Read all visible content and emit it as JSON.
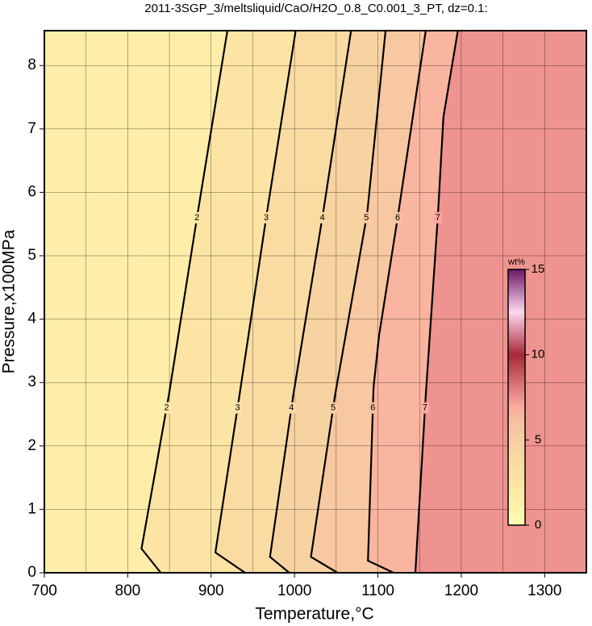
{
  "chart_data": {
    "type": "contour",
    "title": "2011-3SGP_3/meltsliquid/CaO/H2O_0.8_C0.001_3_PT, dz=0.1:",
    "x_label": "Temperature,°C",
    "y_label": "Pressure,x100MPa",
    "xlim": [
      700,
      1350
    ],
    "ylim": [
      0,
      8.55
    ],
    "xticks": [
      700,
      800,
      900,
      1000,
      1100,
      1200,
      1300
    ],
    "yticks": [
      0,
      1,
      2,
      3,
      4,
      5,
      6,
      7,
      8
    ],
    "xgrid": [
      700,
      750,
      800,
      850,
      900,
      950,
      1000,
      1050,
      1100,
      1150,
      1200,
      1250,
      1300,
      1350
    ],
    "grid": true,
    "contours": [
      {
        "level": 2,
        "x": [
          839.6,
          816.5,
          849.3,
          883.0,
          919.5
        ],
        "y": [
          0,
          0.38,
          2.8,
          5.6,
          8.55
        ]
      },
      {
        "level": 3,
        "x": [
          940.7,
          905.1,
          934.0,
          966.7,
          1001.4
        ],
        "y": [
          0,
          0.32,
          2.8,
          5.66,
          8.55
        ]
      },
      {
        "level": 4,
        "x": [
          993.7,
          970.6,
          998.5,
          1034.1,
          1067.8
        ],
        "y": [
          0,
          0.25,
          2.8,
          5.66,
          8.55
        ]
      },
      {
        "level": 5,
        "x": [
          1051.5,
          1019.7,
          1048.6,
          1087.1,
          1109.2
        ],
        "y": [
          0,
          0.25,
          2.8,
          5.66,
          8.55
        ]
      },
      {
        "level": 6,
        "x": [
          1118.9,
          1088.1,
          1094.8,
          1101.5,
          1123.7,
          1157.4
        ],
        "y": [
          0,
          0.19,
          2.93,
          3.75,
          5.6,
          8.55
        ]
      },
      {
        "level": 7,
        "x": [
          1144.9,
          1157.4,
          1171.8,
          1178.6,
          1195.9
        ],
        "y": [
          0,
          2.8,
          5.6,
          7.19,
          8.55
        ]
      }
    ],
    "colorbar": {
      "label": "wt%",
      "lim": [
        0,
        15
      ],
      "ticks": [
        0,
        5,
        10,
        15
      ]
    },
    "colormap": [
      {
        "value": 0,
        "color": "#fffcb4"
      },
      {
        "value": 2,
        "color": "#fde9a5"
      },
      {
        "value": 4,
        "color": "#f9d8a2"
      },
      {
        "value": 6,
        "color": "#f6c2a0"
      },
      {
        "value": 7,
        "color": "#fca8a0"
      },
      {
        "value": 10,
        "color": "#a82838"
      },
      {
        "value": 12.5,
        "color": "#ffd8f0"
      },
      {
        "value": 15,
        "color": "#6a1868"
      }
    ]
  }
}
